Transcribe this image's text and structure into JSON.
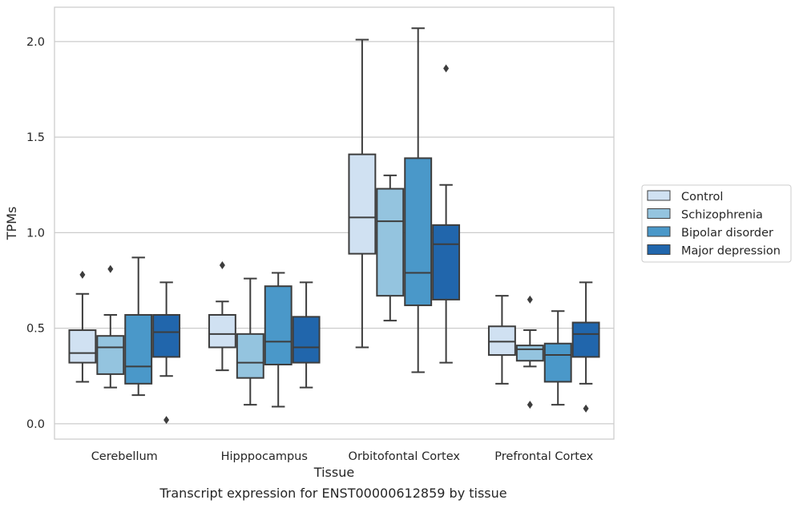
{
  "chart_data": {
    "type": "box",
    "caption": "Transcript expression for ENST00000612859 by tissue",
    "xlabel": "Tissue",
    "ylabel": "TPMs",
    "ylim": [
      -0.08,
      2.18
    ],
    "yticks": [
      0.0,
      0.5,
      1.0,
      1.5,
      2.0
    ],
    "ytick_labels": [
      "0.0",
      "0.5",
      "1.0",
      "1.5",
      "2.0"
    ],
    "grid": "horizontal",
    "legend_position": "right, outside plot",
    "categories": [
      "Cerebellum",
      "Hipppocampus",
      "Orbitofontal Cortex",
      "Prefrontal Cortex"
    ],
    "series": [
      {
        "name": "Control",
        "color": "#d0e1f2",
        "boxes": [
          {
            "whislo": 0.22,
            "q1": 0.32,
            "med": 0.37,
            "q3": 0.49,
            "whishi": 0.68,
            "fliers": [
              0.78
            ]
          },
          {
            "whislo": 0.28,
            "q1": 0.4,
            "med": 0.47,
            "q3": 0.57,
            "whishi": 0.64,
            "fliers": [
              0.83
            ]
          },
          {
            "whislo": 0.4,
            "q1": 0.89,
            "med": 1.08,
            "q3": 1.41,
            "whishi": 2.01,
            "fliers": []
          },
          {
            "whislo": 0.21,
            "q1": 0.36,
            "med": 0.43,
            "q3": 0.51,
            "whishi": 0.67,
            "fliers": []
          }
        ]
      },
      {
        "name": "Schizophrenia",
        "color": "#94c4df",
        "boxes": [
          {
            "whislo": 0.19,
            "q1": 0.26,
            "med": 0.4,
            "q3": 0.46,
            "whishi": 0.57,
            "fliers": [
              0.81
            ]
          },
          {
            "whislo": 0.1,
            "q1": 0.24,
            "med": 0.32,
            "q3": 0.47,
            "whishi": 0.76,
            "fliers": []
          },
          {
            "whislo": 0.54,
            "q1": 0.67,
            "med": 1.06,
            "q3": 1.23,
            "whishi": 1.3,
            "fliers": []
          },
          {
            "whislo": 0.3,
            "q1": 0.33,
            "med": 0.39,
            "q3": 0.41,
            "whishi": 0.49,
            "fliers": [
              0.65,
              0.1
            ]
          }
        ]
      },
      {
        "name": "Bipolar disorder",
        "color": "#4a98c9",
        "boxes": [
          {
            "whislo": 0.15,
            "q1": 0.21,
            "med": 0.3,
            "q3": 0.57,
            "whishi": 0.87,
            "fliers": []
          },
          {
            "whislo": 0.09,
            "q1": 0.31,
            "med": 0.43,
            "q3": 0.72,
            "whishi": 0.79,
            "fliers": []
          },
          {
            "whislo": 0.27,
            "q1": 0.62,
            "med": 0.79,
            "q3": 1.39,
            "whishi": 2.07,
            "fliers": []
          },
          {
            "whislo": 0.1,
            "q1": 0.22,
            "med": 0.36,
            "q3": 0.42,
            "whishi": 0.59,
            "fliers": []
          }
        ]
      },
      {
        "name": "Major depression",
        "color": "#2166ac",
        "boxes": [
          {
            "whislo": 0.25,
            "q1": 0.35,
            "med": 0.48,
            "q3": 0.57,
            "whishi": 0.74,
            "fliers": [
              0.02
            ]
          },
          {
            "whislo": 0.19,
            "q1": 0.32,
            "med": 0.4,
            "q3": 0.56,
            "whishi": 0.74,
            "fliers": []
          },
          {
            "whislo": 0.32,
            "q1": 0.65,
            "med": 0.94,
            "q3": 1.04,
            "whishi": 1.25,
            "fliers": [
              1.86
            ]
          },
          {
            "whislo": 0.21,
            "q1": 0.35,
            "med": 0.47,
            "q3": 0.53,
            "whishi": 0.74,
            "fliers": [
              0.08
            ]
          }
        ]
      }
    ]
  }
}
